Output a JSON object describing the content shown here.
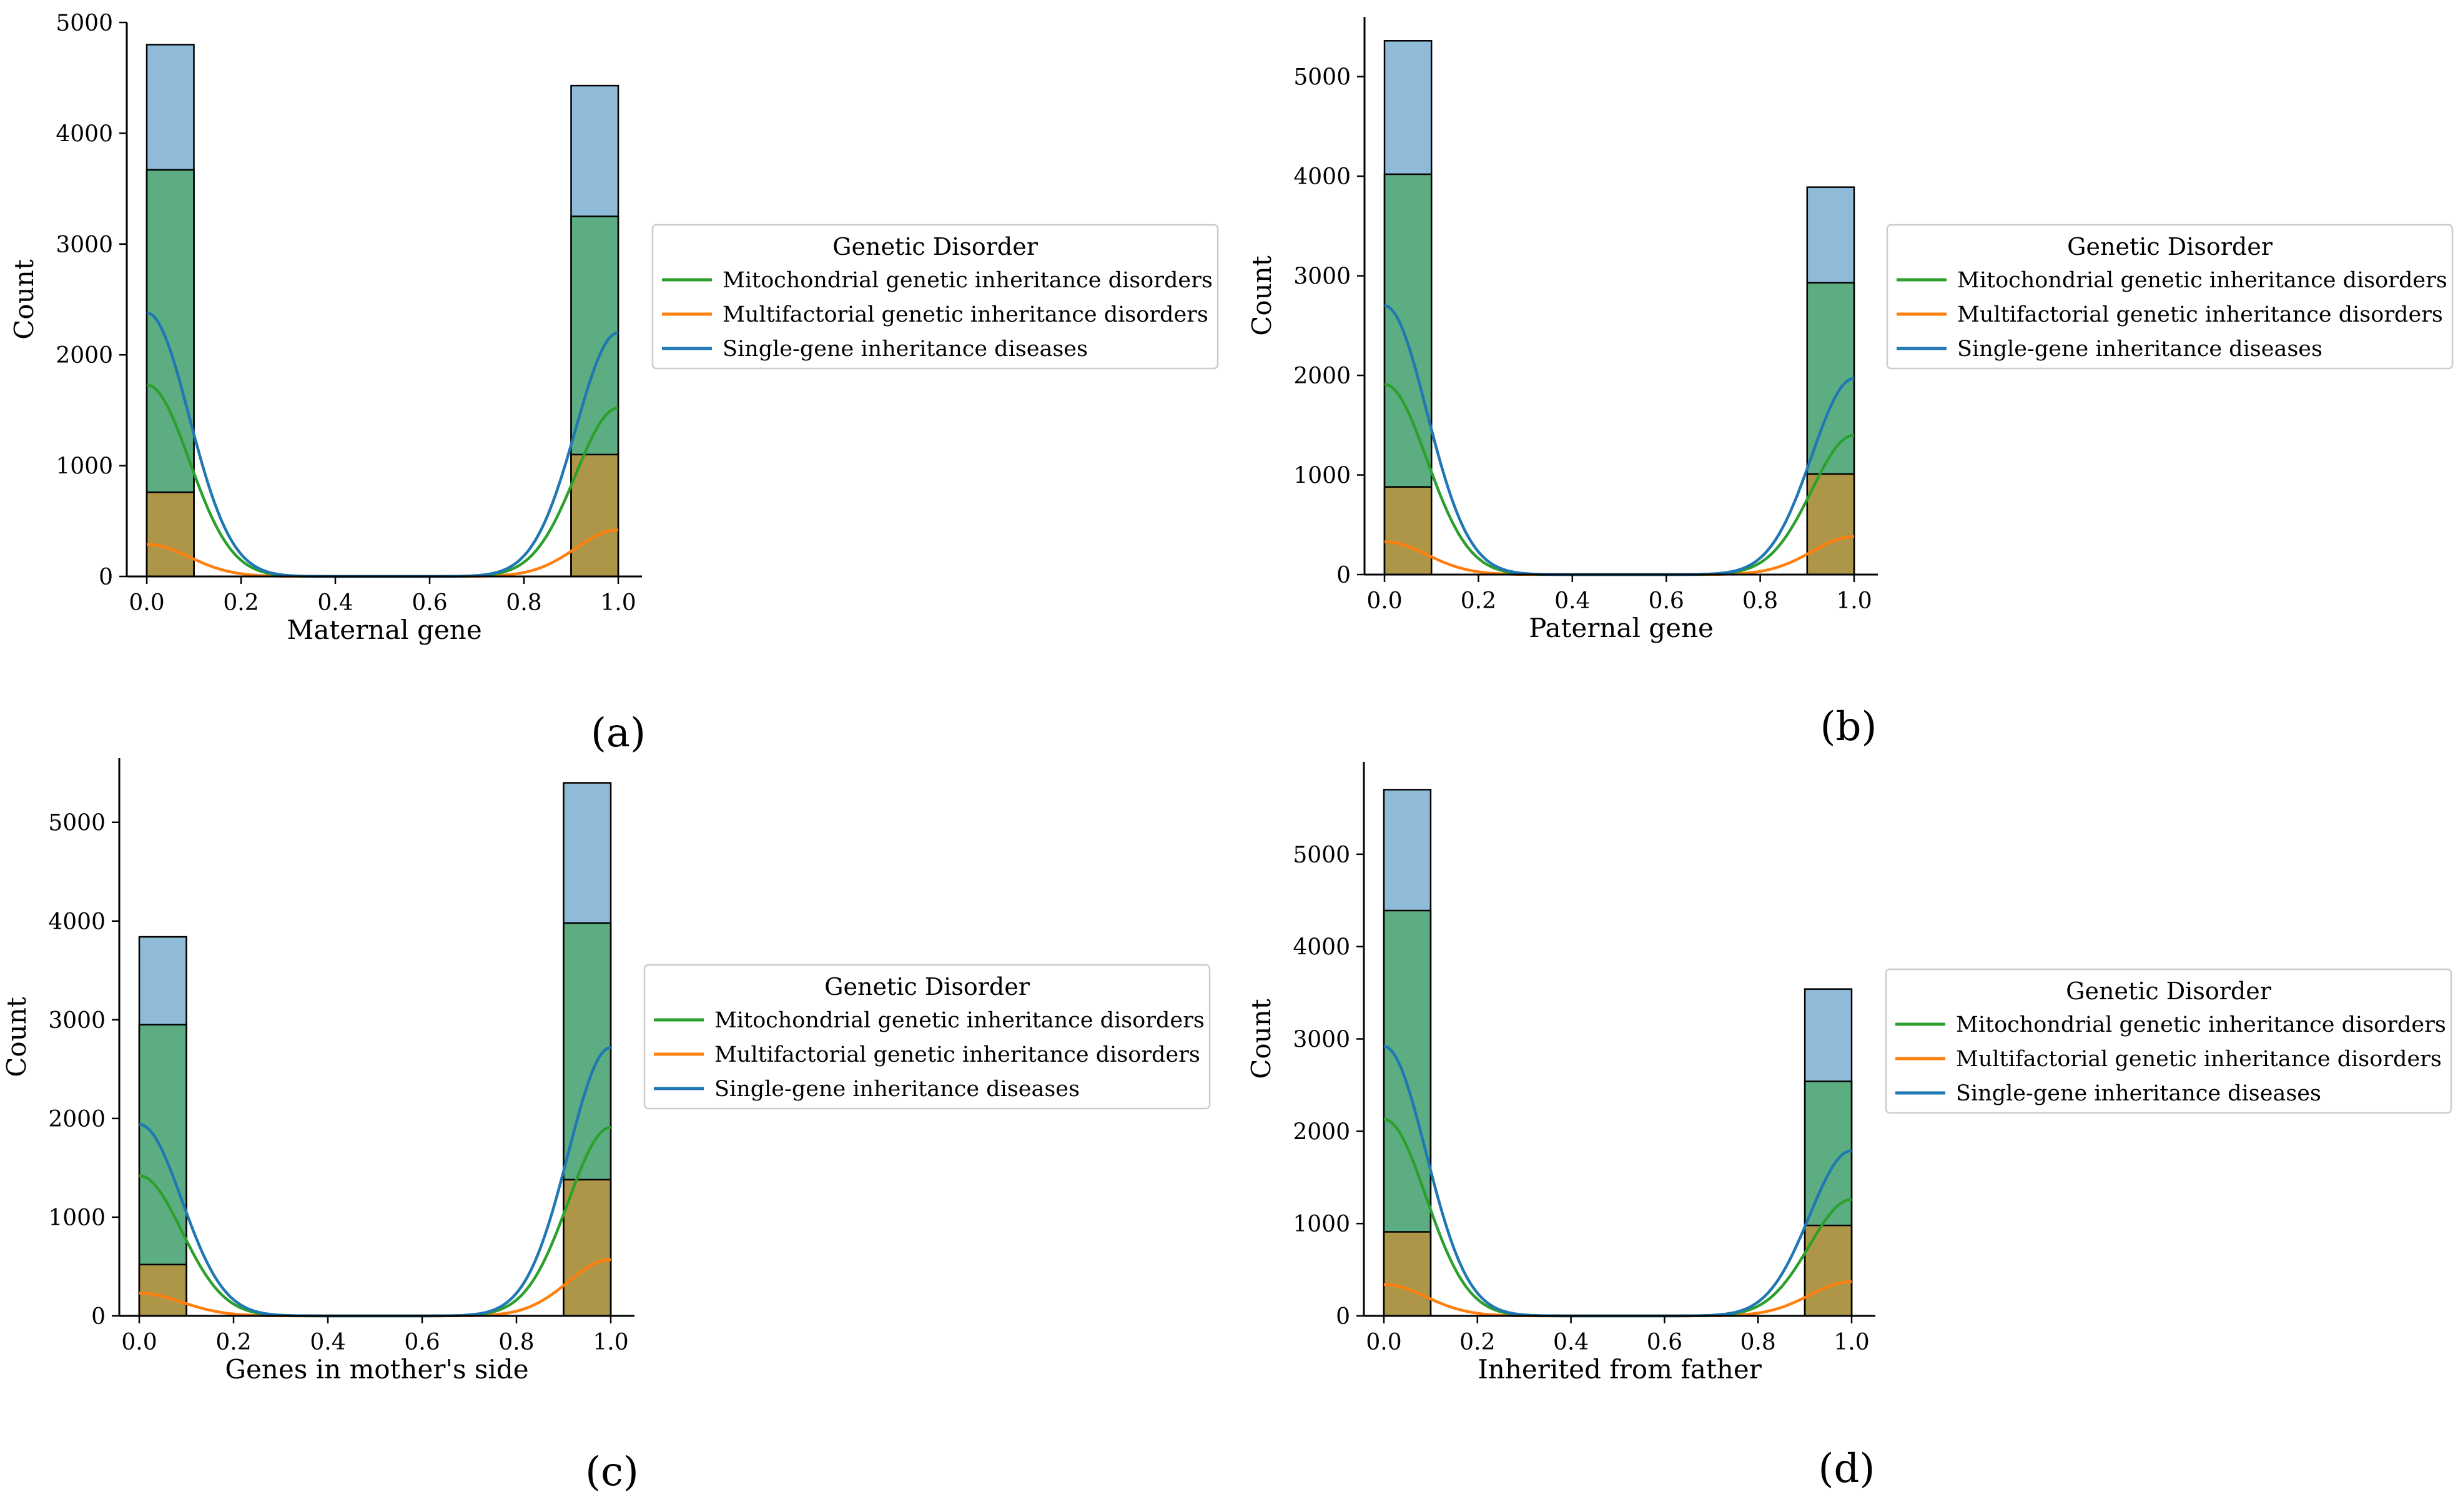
{
  "figure": {
    "colors": {
      "single": "#1f77b4",
      "multi": "#ff7f0e",
      "mito": "#2ca02c",
      "axis": "#000000",
      "bar_edge": "#000000"
    }
  },
  "chart_data": [
    {
      "type": "histogram",
      "panel_label": "(a)",
      "xlabel": "Maternal gene",
      "ylabel": "Count",
      "xlim": [
        0,
        1
      ],
      "ylim": [
        0,
        5000
      ],
      "xticks": [
        "0.0",
        "0.2",
        "0.4",
        "0.6",
        "0.8",
        "1.0"
      ],
      "yticks": [
        "0",
        "1000",
        "2000",
        "3000",
        "4000",
        "5000"
      ],
      "legend": {
        "title": "Genetic Disorder",
        "entries": [
          "Mitochondrial genetic inheritance disorders",
          "Multifactorial genetic inheritance disorders",
          "Single-gene inheritance diseases"
        ]
      },
      "bins": [
        {
          "x0": 0.0,
          "x1": 0.1,
          "single": 4800,
          "mito": 3670,
          "multi": 760
        },
        {
          "x0": 0.9,
          "x1": 1.0,
          "single": 4430,
          "mito": 3250,
          "multi": 1100
        }
      ],
      "kde_peaks": {
        "single": [
          2380,
          2200
        ],
        "mito": [
          1730,
          1520
        ],
        "multi": [
          290,
          420
        ]
      }
    },
    {
      "type": "histogram",
      "panel_label": "(b)",
      "xlabel": "Paternal gene",
      "ylabel": "Count",
      "xlim": [
        0,
        1
      ],
      "ylim": [
        0,
        5600
      ],
      "xticks": [
        "0.0",
        "0.2",
        "0.4",
        "0.6",
        "0.8",
        "1.0"
      ],
      "yticks": [
        "0",
        "1000",
        "2000",
        "3000",
        "4000",
        "5000"
      ],
      "legend": {
        "title": "Genetic Disorder",
        "entries": [
          "Mitochondrial genetic inheritance disorders",
          "Multifactorial genetic inheritance disorders",
          "Single-gene inheritance diseases"
        ]
      },
      "bins": [
        {
          "x0": 0.0,
          "x1": 0.1,
          "single": 5360,
          "mito": 4020,
          "multi": 880
        },
        {
          "x0": 0.9,
          "x1": 1.0,
          "single": 3890,
          "mito": 2930,
          "multi": 1010
        }
      ],
      "kde_peaks": {
        "single": [
          2700,
          1970
        ],
        "mito": [
          1910,
          1400
        ],
        "multi": [
          330,
          380
        ]
      }
    },
    {
      "type": "histogram",
      "panel_label": "(c)",
      "xlabel": "Genes in mother's side",
      "ylabel": "Count",
      "xlim": [
        0,
        1
      ],
      "ylim": [
        0,
        5650
      ],
      "xticks": [
        "0.0",
        "0.2",
        "0.4",
        "0.6",
        "0.8",
        "1.0"
      ],
      "yticks": [
        "0",
        "1000",
        "2000",
        "3000",
        "4000",
        "5000"
      ],
      "legend": {
        "title": "Genetic Disorder",
        "entries": [
          "Mitochondrial genetic inheritance disorders",
          "Multifactorial genetic inheritance disorders",
          "Single-gene inheritance diseases"
        ]
      },
      "bins": [
        {
          "x0": 0.0,
          "x1": 0.1,
          "single": 3840,
          "mito": 2950,
          "multi": 520
        },
        {
          "x0": 0.9,
          "x1": 1.0,
          "single": 5400,
          "mito": 3980,
          "multi": 1380
        }
      ],
      "kde_peaks": {
        "single": [
          1940,
          2720
        ],
        "mito": [
          1420,
          1910
        ],
        "multi": [
          230,
          570
        ]
      }
    },
    {
      "type": "histogram",
      "panel_label": "(d)",
      "xlabel": "Inherited from father",
      "ylabel": "Count",
      "xlim": [
        0,
        1
      ],
      "ylim": [
        0,
        6000
      ],
      "xticks": [
        "0.0",
        "0.2",
        "0.4",
        "0.6",
        "0.8",
        "1.0"
      ],
      "yticks": [
        "0",
        "1000",
        "2000",
        "3000",
        "4000",
        "5000"
      ],
      "legend": {
        "title": "Genetic Disorder",
        "entries": [
          "Mitochondrial genetic inheritance disorders",
          "Multifactorial genetic inheritance disorders",
          "Single-gene inheritance diseases"
        ]
      },
      "bins": [
        {
          "x0": 0.0,
          "x1": 0.1,
          "single": 5700,
          "mito": 4390,
          "multi": 910
        },
        {
          "x0": 0.9,
          "x1": 1.0,
          "single": 3540,
          "mito": 2540,
          "multi": 980
        }
      ],
      "kde_peaks": {
        "single": [
          2920,
          1790
        ],
        "mito": [
          2130,
          1260
        ],
        "multi": [
          340,
          370
        ]
      }
    }
  ]
}
